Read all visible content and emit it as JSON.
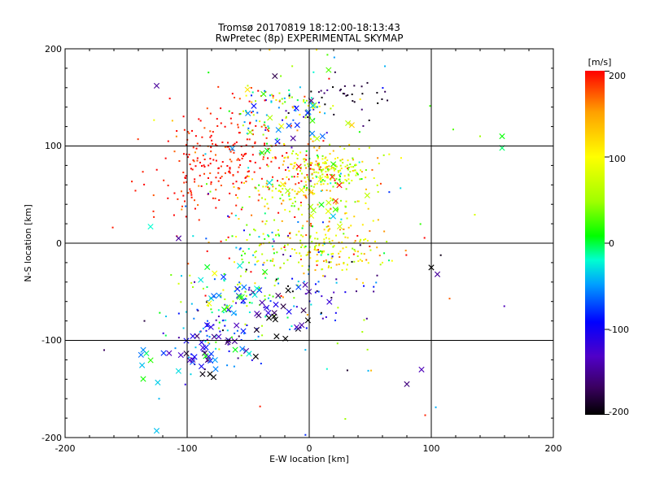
{
  "chart_data": {
    "type": "scatter",
    "title": "Tromsø 20170819 18:12:00-18:13:43",
    "subtitle": "RwPretec (8p) EXPERIMENTAL SKYMAP",
    "xlabel": "E-W location [km]",
    "ylabel": "N-S location [km]",
    "xlim": [
      -200,
      200
    ],
    "ylim": [
      -200,
      200
    ],
    "xticks": [
      "-200",
      "-100",
      "0",
      "100",
      "200"
    ],
    "yticks": [
      "-200",
      "-100",
      "0",
      "100",
      "200"
    ],
    "grid": true,
    "colorbar": {
      "label": "[m/s]",
      "range": [
        -200,
        200
      ],
      "ticks": [
        "200",
        "100",
        "0",
        "-100",
        "-200"
      ],
      "colormap": "black-purple-blue-cyan-green-yellow-orange-red"
    },
    "marker_types": [
      "dot",
      "x"
    ],
    "clusters": [
      {
        "center": [
          -60,
          85
        ],
        "spread": [
          30,
          28
        ],
        "count": 230,
        "velocity_mean": 195,
        "velocity_spread": 15,
        "marker": "dot"
      },
      {
        "center": [
          -100,
          60
        ],
        "spread": [
          22,
          30
        ],
        "count": 40,
        "velocity_mean": 190,
        "velocity_spread": 15,
        "marker": "dot"
      },
      {
        "center": [
          10,
          80
        ],
        "spread": [
          18,
          12
        ],
        "count": 140,
        "velocity_mean": 105,
        "velocity_spread": 45,
        "marker": "dot"
      },
      {
        "center": [
          25,
          72
        ],
        "spread": [
          14,
          8
        ],
        "count": 60,
        "velocity_mean": 40,
        "velocity_spread": 30,
        "marker": "dot"
      },
      {
        "center": [
          -20,
          140
        ],
        "spread": [
          22,
          14
        ],
        "count": 90,
        "velocity_mean": 10,
        "velocity_spread": 90,
        "marker": "dot"
      },
      {
        "center": [
          30,
          150
        ],
        "spread": [
          18,
          10
        ],
        "count": 35,
        "velocity_mean": -185,
        "velocity_spread": 15,
        "marker": "dot"
      },
      {
        "center": [
          -10,
          50
        ],
        "spread": [
          25,
          18
        ],
        "count": 120,
        "velocity_mean": 80,
        "velocity_spread": 60,
        "marker": "dot"
      },
      {
        "center": [
          10,
          -5
        ],
        "spread": [
          25,
          12
        ],
        "count": 170,
        "velocity_mean": 85,
        "velocity_spread": 50,
        "marker": "dot"
      },
      {
        "center": [
          -40,
          -5
        ],
        "spread": [
          18,
          15
        ],
        "count": 40,
        "velocity_mean": 20,
        "velocity_spread": 60,
        "marker": "dot"
      },
      {
        "center": [
          -55,
          -55
        ],
        "spread": [
          20,
          20
        ],
        "count": 90,
        "velocity_mean": 0,
        "velocity_spread": 80,
        "marker": "dot"
      },
      {
        "center": [
          -80,
          -95
        ],
        "spread": [
          18,
          18
        ],
        "count": 60,
        "velocity_mean": -80,
        "velocity_spread": 60,
        "marker": "dot"
      },
      {
        "center": [
          10,
          -50
        ],
        "spread": [
          20,
          25
        ],
        "count": 40,
        "velocity_mean": -120,
        "velocity_spread": 60,
        "marker": "dot"
      },
      {
        "center": [
          0,
          15
        ],
        "spread": [
          60,
          80
        ],
        "count": 130,
        "velocity_mean": 40,
        "velocity_spread": 110,
        "marker": "dot"
      },
      {
        "center": [
          -10,
          130
        ],
        "spread": [
          25,
          25
        ],
        "count": 30,
        "velocity_mean": 0,
        "velocity_spread": 80,
        "marker": "x"
      },
      {
        "center": [
          -80,
          -110
        ],
        "spread": [
          15,
          15
        ],
        "count": 40,
        "velocity_mean": -110,
        "velocity_spread": 60,
        "marker": "x"
      },
      {
        "center": [
          -25,
          -75
        ],
        "spread": [
          20,
          20
        ],
        "count": 30,
        "velocity_mean": -150,
        "velocity_spread": 50,
        "marker": "x"
      },
      {
        "center": [
          -60,
          -45
        ],
        "spread": [
          15,
          15
        ],
        "count": 20,
        "velocity_mean": -10,
        "velocity_spread": 50,
        "marker": "x"
      },
      {
        "center": [
          10,
          50
        ],
        "spread": [
          20,
          20
        ],
        "count": 20,
        "velocity_mean": 60,
        "velocity_spread": 90,
        "marker": "x"
      },
      {
        "center": [
          -130,
          -120
        ],
        "spread": [
          10,
          10
        ],
        "count": 8,
        "velocity_mean": -30,
        "velocity_spread": 30,
        "marker": "x"
      }
    ],
    "isolated_points": [
      {
        "x": -125,
        "y": 162,
        "v": -150,
        "marker": "x"
      },
      {
        "x": -107,
        "y": 5,
        "v": -150,
        "marker": "x"
      },
      {
        "x": -130,
        "y": 17,
        "v": -20,
        "marker": "x"
      },
      {
        "x": -125,
        "y": -193,
        "v": -40,
        "marker": "x"
      },
      {
        "x": 100,
        "y": -25,
        "v": -200,
        "marker": "x"
      },
      {
        "x": 105,
        "y": -32,
        "v": -150,
        "marker": "x"
      },
      {
        "x": 80,
        "y": -145,
        "v": -160,
        "marker": "x"
      },
      {
        "x": 92,
        "y": -130,
        "v": -140,
        "marker": "x"
      },
      {
        "x": 158,
        "y": 110,
        "v": 0,
        "marker": "x"
      },
      {
        "x": 158,
        "y": 98,
        "v": -10,
        "marker": "x"
      },
      {
        "x": 95,
        "y": -177,
        "v": 190,
        "marker": "dot"
      },
      {
        "x": 115,
        "y": -57,
        "v": 170,
        "marker": "dot"
      },
      {
        "x": -168,
        "y": -110,
        "v": -170,
        "marker": "dot"
      },
      {
        "x": 118,
        "y": 117,
        "v": 20,
        "marker": "dot"
      },
      {
        "x": 140,
        "y": 110,
        "v": 40,
        "marker": "dot"
      },
      {
        "x": -135,
        "y": -80,
        "v": -180,
        "marker": "dot"
      },
      {
        "x": 60,
        "y": -20,
        "v": 90,
        "marker": "dot"
      }
    ]
  },
  "colors": {
    "colormap_stops": [
      "#000000",
      "#3a0060",
      "#5000c8",
      "#0000ff",
      "#00a0ff",
      "#00ffd0",
      "#00ff00",
      "#a0ff00",
      "#ffff00",
      "#ffa000",
      "#ff0000"
    ]
  }
}
